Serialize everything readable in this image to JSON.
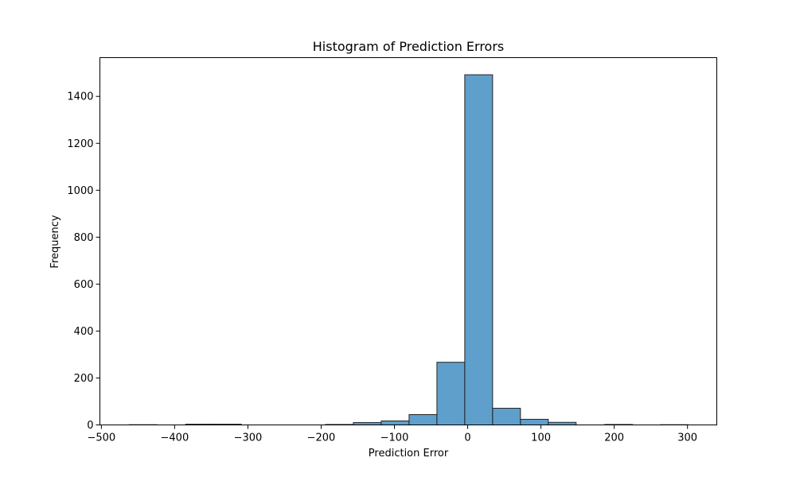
{
  "chart_data": {
    "type": "bar",
    "title": "Histogram of Prediction Errors",
    "xlabel": "Prediction Error",
    "ylabel": "Frequency",
    "xlim": [
      -502,
      340
    ],
    "ylim": [
      0,
      1565
    ],
    "grid": false,
    "bar_color": "#5f9fcc",
    "edge_color": "#222222",
    "bins": [
      {
        "x0": -462,
        "x1": -424,
        "count": 1
      },
      {
        "x0": -385,
        "x1": -347,
        "count": 3
      },
      {
        "x0": -347,
        "x1": -309,
        "count": 3
      },
      {
        "x0": -194,
        "x1": -156,
        "count": 2
      },
      {
        "x0": -156,
        "x1": -118,
        "count": 10
      },
      {
        "x0": -118,
        "x1": -80,
        "count": 17
      },
      {
        "x0": -80,
        "x1": -42,
        "count": 44
      },
      {
        "x0": -42,
        "x1": -4,
        "count": 267
      },
      {
        "x0": -4,
        "x1": 34,
        "count": 1492
      },
      {
        "x0": 34,
        "x1": 72,
        "count": 71
      },
      {
        "x0": 72,
        "x1": 110,
        "count": 24
      },
      {
        "x0": 110,
        "x1": 148,
        "count": 11
      },
      {
        "x0": 187,
        "x1": 225,
        "count": 2
      },
      {
        "x0": 263,
        "x1": 301,
        "count": 1
      }
    ],
    "x_ticks": [
      {
        "value": -500,
        "label": "−500"
      },
      {
        "value": -400,
        "label": "−400"
      },
      {
        "value": -300,
        "label": "−300"
      },
      {
        "value": -200,
        "label": "−200"
      },
      {
        "value": -100,
        "label": "−100"
      },
      {
        "value": 0,
        "label": "0"
      },
      {
        "value": 100,
        "label": "100"
      },
      {
        "value": 200,
        "label": "200"
      },
      {
        "value": 300,
        "label": "300"
      }
    ],
    "y_ticks": [
      {
        "value": 0,
        "label": "0"
      },
      {
        "value": 200,
        "label": "200"
      },
      {
        "value": 400,
        "label": "400"
      },
      {
        "value": 600,
        "label": "600"
      },
      {
        "value": 800,
        "label": "800"
      },
      {
        "value": 1000,
        "label": "1000"
      },
      {
        "value": 1200,
        "label": "1200"
      },
      {
        "value": 1400,
        "label": "1400"
      }
    ]
  }
}
